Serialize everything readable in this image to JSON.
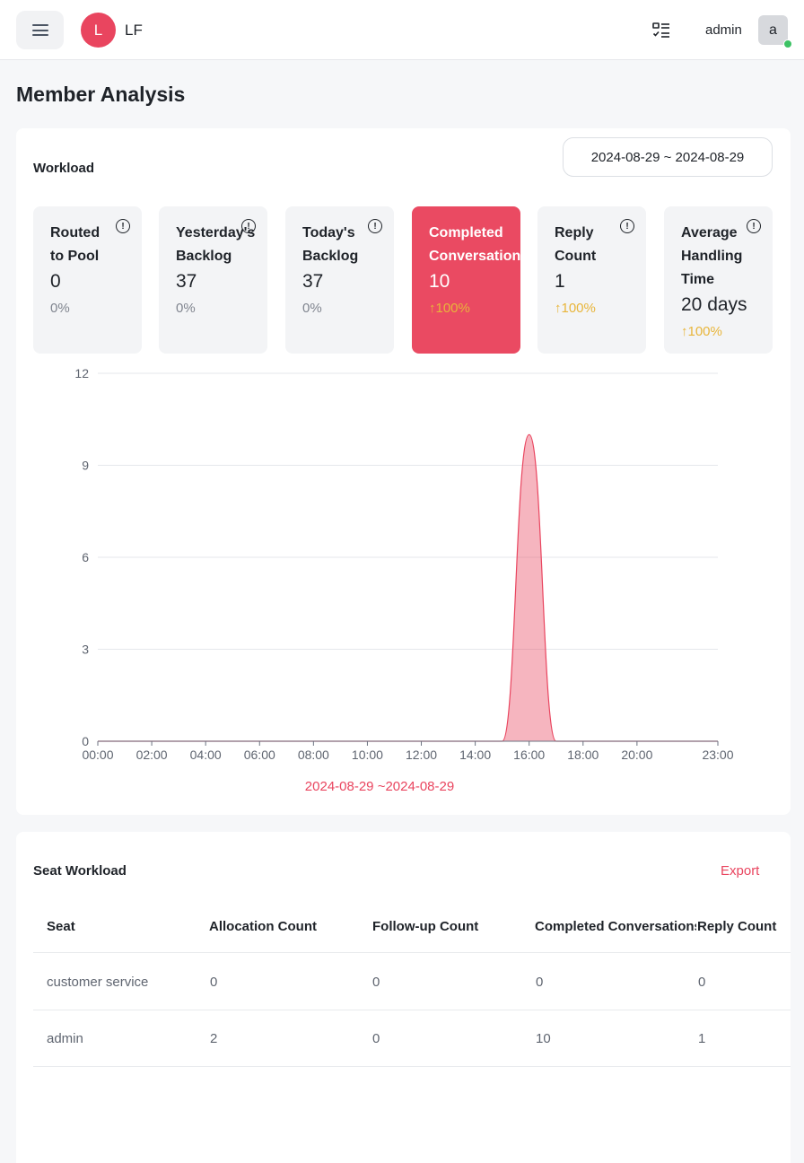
{
  "header": {
    "logo_letter": "L",
    "brand": "LF",
    "username": "admin",
    "avatar_letter": "a",
    "icons": {
      "menu": "hamburger-icon",
      "tasks": "task-list-icon"
    },
    "status_color": "#3cc264"
  },
  "page": {
    "title": "Member Analysis"
  },
  "workload": {
    "title": "Workload",
    "date_range": "2024-08-29 ~ 2024-08-29",
    "stats": [
      {
        "label": "Routed\nto Pool",
        "value": "0",
        "change": "0%",
        "trend": "flat"
      },
      {
        "label": "Yesterday's\nBacklog",
        "value": "37",
        "change": "0%",
        "trend": "flat"
      },
      {
        "label": "Today's\nBacklog",
        "value": "37",
        "change": "0%",
        "trend": "flat"
      },
      {
        "label": "Completed\nConversations",
        "value": "10",
        "change": "↑100%",
        "trend": "up",
        "active": true
      },
      {
        "label": "Reply\nCount",
        "value": "1",
        "change": "↑100%",
        "trend": "up"
      },
      {
        "label": "Average\nHandling\nTime",
        "value": "20 days",
        "change": "↑100%",
        "trend": "up"
      }
    ],
    "info_icon": "info-circle-icon"
  },
  "chart_data": {
    "type": "area",
    "x": [
      "00:00",
      "02:00",
      "04:00",
      "06:00",
      "08:00",
      "10:00",
      "12:00",
      "14:00",
      "16:00",
      "18:00",
      "20:00",
      "23:00"
    ],
    "x_hours": [
      0,
      2,
      4,
      6,
      8,
      10,
      12,
      14,
      16,
      18,
      20,
      23
    ],
    "series": [
      {
        "points": [
          [
            0,
            0
          ],
          [
            15,
            0
          ],
          [
            16,
            10
          ],
          [
            17,
            0
          ],
          [
            23,
            0
          ]
        ]
      }
    ],
    "ylim": [
      0,
      12
    ],
    "yticks": [
      "0",
      "3",
      "6",
      "9",
      "12"
    ],
    "ytick_values": [
      0,
      3,
      6,
      9,
      12
    ],
    "xlabel": "2024-08-29 ~2024-08-29",
    "grid": true,
    "color": "#e9455f"
  },
  "seat": {
    "title": "Seat Workload",
    "export_label": "Export",
    "columns": [
      "Seat",
      "Allocation Count",
      "Follow-up Count",
      "Completed Conversations",
      "Reply Count"
    ],
    "rows": [
      [
        "customer service",
        "0",
        "0",
        "0",
        "0"
      ],
      [
        "admin",
        "2",
        "0",
        "10",
        "1"
      ]
    ]
  }
}
